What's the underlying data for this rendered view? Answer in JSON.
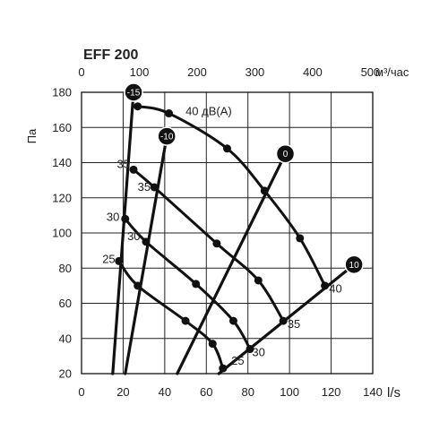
{
  "chart_data": {
    "type": "line",
    "title": "EFF 200",
    "y_label": "Па",
    "x_unit": "l/s",
    "x_top_unit": "м³/час",
    "xlim": [
      0,
      140
    ],
    "ylim": [
      20,
      180
    ],
    "x_ticks": [
      "0",
      "20",
      "40",
      "60",
      "80",
      "100",
      "120",
      "140"
    ],
    "x_top_ticks": [
      "0",
      "100",
      "200",
      "300",
      "400",
      "500"
    ],
    "y_ticks": [
      "20",
      "40",
      "60",
      "80",
      "100",
      "120",
      "140",
      "160",
      "180"
    ],
    "grid": true,
    "fan_lines": [
      {
        "label": "-15",
        "points": [
          [
            15,
            20
          ],
          [
            25,
            180
          ]
        ]
      },
      {
        "label": "-10",
        "points": [
          [
            21,
            20
          ],
          [
            41,
            155
          ]
        ]
      },
      {
        "label": "0",
        "points": [
          [
            46,
            20
          ],
          [
            98,
            145
          ]
        ]
      },
      {
        "label": "10",
        "points": [
          [
            66,
            20
          ],
          [
            131,
            82
          ]
        ]
      }
    ],
    "noise_curves": [
      {
        "label": "40 дВ(A)",
        "points": [
          [
            27,
            172
          ],
          [
            42,
            168
          ],
          [
            70,
            148
          ],
          [
            88,
            124
          ],
          [
            105,
            97
          ],
          [
            117,
            70
          ]
        ]
      },
      {
        "label": "35",
        "points": [
          [
            25,
            136
          ],
          [
            35,
            126
          ],
          [
            65,
            94
          ],
          [
            85,
            73
          ],
          [
            97,
            50
          ]
        ]
      },
      {
        "label": "30",
        "points": [
          [
            21,
            108
          ],
          [
            31,
            95
          ],
          [
            55,
            71
          ],
          [
            73,
            50
          ],
          [
            81,
            34
          ]
        ]
      },
      {
        "label": "25",
        "points": [
          [
            18,
            84
          ],
          [
            27,
            70
          ],
          [
            50,
            50
          ],
          [
            63,
            37
          ],
          [
            68,
            23
          ]
        ]
      }
    ],
    "curve_labels": [
      {
        "text": "40 дВ(A)",
        "x": 50,
        "y": 167
      },
      {
        "text": "35",
        "x": 17,
        "y": 137
      },
      {
        "text": "35",
        "x": 27,
        "y": 124
      },
      {
        "text": "30",
        "x": 12,
        "y": 107
      },
      {
        "text": "30",
        "x": 22,
        "y": 96
      },
      {
        "text": "25",
        "x": 10,
        "y": 83
      },
      {
        "text": "40",
        "x": 119,
        "y": 66
      },
      {
        "text": "35",
        "x": 99,
        "y": 46
      },
      {
        "text": "30",
        "x": 82,
        "y": 30
      },
      {
        "text": "25",
        "x": 72,
        "y": 25
      }
    ]
  }
}
